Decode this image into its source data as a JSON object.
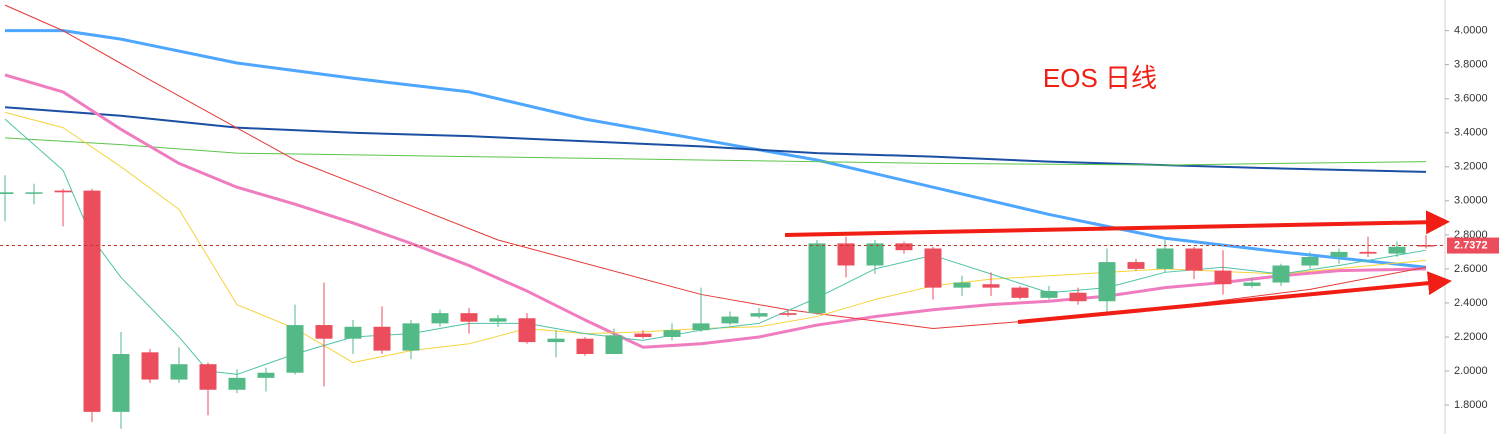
{
  "chart_data": {
    "type": "candlestick",
    "annotation": "EOS 日线",
    "open": [
      3.04,
      3.05,
      3.06,
      3.06,
      1.76,
      2.11,
      1.95,
      2.04,
      1.89,
      1.96,
      1.99,
      2.27,
      2.19,
      2.26,
      2.12,
      2.28,
      2.34,
      2.29,
      2.31,
      2.17,
      2.19,
      2.1,
      2.22,
      2.2,
      2.24,
      2.28,
      2.32,
      2.34,
      2.34,
      2.75,
      2.62,
      2.75,
      2.72,
      2.49,
      2.51,
      2.49,
      2.43,
      2.46,
      2.41,
      2.64,
      2.6,
      2.72,
      2.59,
      2.5,
      2.52,
      2.62,
      2.67,
      2.7,
      2.69,
      2.74
    ],
    "high": [
      3.15,
      3.1,
      3.07,
      3.07,
      2.23,
      2.13,
      2.14,
      2.05,
      2.01,
      2.02,
      2.39,
      2.52,
      2.3,
      2.38,
      2.3,
      2.36,
      2.37,
      2.33,
      2.34,
      2.24,
      2.2,
      2.25,
      2.24,
      2.28,
      2.49,
      2.35,
      2.37,
      2.36,
      2.77,
      2.79,
      2.77,
      2.76,
      2.73,
      2.56,
      2.58,
      2.5,
      2.5,
      2.49,
      2.72,
      2.66,
      2.77,
      2.73,
      2.71,
      2.55,
      2.63,
      2.7,
      2.72,
      2.79,
      2.76,
      2.8
    ],
    "low": [
      2.88,
      2.98,
      2.85,
      1.7,
      1.66,
      1.93,
      1.93,
      1.74,
      1.87,
      1.88,
      1.98,
      1.91,
      2.1,
      2.1,
      2.07,
      2.26,
      2.22,
      2.26,
      2.16,
      2.08,
      2.09,
      2.1,
      2.19,
      2.18,
      2.23,
      2.27,
      2.31,
      2.32,
      2.33,
      2.55,
      2.57,
      2.69,
      2.42,
      2.44,
      2.44,
      2.42,
      2.42,
      2.39,
      2.35,
      2.59,
      2.58,
      2.54,
      2.45,
      2.49,
      2.5,
      2.6,
      2.63,
      2.67,
      2.67,
      2.72
    ],
    "close": [
      3.05,
      3.05,
      3.05,
      1.76,
      2.1,
      1.95,
      2.04,
      1.89,
      1.96,
      1.99,
      2.27,
      2.19,
      2.26,
      2.12,
      2.28,
      2.34,
      2.29,
      2.31,
      2.17,
      2.19,
      2.1,
      2.21,
      2.2,
      2.24,
      2.28,
      2.32,
      2.34,
      2.33,
      2.75,
      2.62,
      2.75,
      2.71,
      2.49,
      2.52,
      2.49,
      2.43,
      2.47,
      2.41,
      2.64,
      2.6,
      2.72,
      2.59,
      2.51,
      2.52,
      2.62,
      2.67,
      2.7,
      2.69,
      2.73,
      2.7372
    ],
    "up_color": "#53b987",
    "down_color": "#eb4d5c",
    "last_price": 2.7372,
    "series": [
      {
        "color": "#4da6ff",
        "width": 3,
        "x": [
          0,
          2,
          4,
          8,
          12,
          16,
          20,
          24,
          28,
          32,
          36,
          40,
          44,
          49
        ],
        "values": [
          4.0,
          4.0,
          3.95,
          3.81,
          3.72,
          3.64,
          3.48,
          3.36,
          3.24,
          3.08,
          2.92,
          2.78,
          2.7,
          2.61
        ]
      },
      {
        "color": "#1a4fa3",
        "width": 2,
        "x": [
          0,
          4,
          8,
          12,
          16,
          20,
          24,
          28,
          32,
          36,
          40,
          44,
          49
        ],
        "values": [
          3.55,
          3.5,
          3.43,
          3.4,
          3.38,
          3.35,
          3.32,
          3.28,
          3.26,
          3.23,
          3.21,
          3.19,
          3.17
        ]
      },
      {
        "color": "#5cc44a",
        "width": 1,
        "x": [
          0,
          4,
          8,
          16,
          24,
          32,
          40,
          44,
          49
        ],
        "values": [
          3.37,
          3.33,
          3.28,
          3.26,
          3.24,
          3.22,
          3.21,
          3.22,
          3.23
        ]
      },
      {
        "color": "#f07cc0",
        "width": 3,
        "x": [
          0,
          2,
          4,
          6,
          8,
          10,
          12,
          14,
          16,
          18,
          20,
          22,
          24,
          26,
          28,
          30,
          32,
          34,
          36,
          38,
          40,
          42,
          44,
          46,
          49
        ],
        "values": [
          3.74,
          3.64,
          3.42,
          3.22,
          3.08,
          2.98,
          2.87,
          2.75,
          2.62,
          2.47,
          2.3,
          2.14,
          2.16,
          2.2,
          2.27,
          2.32,
          2.36,
          2.39,
          2.41,
          2.44,
          2.49,
          2.52,
          2.56,
          2.59,
          2.6
        ]
      },
      {
        "color": "#e53935",
        "width": 1,
        "x": [
          0,
          2,
          5,
          10,
          17,
          24,
          27,
          32,
          38,
          45,
          49
        ],
        "values": [
          4.15,
          4.0,
          3.71,
          3.24,
          2.77,
          2.45,
          2.36,
          2.25,
          2.33,
          2.48,
          2.61
        ]
      },
      {
        "color": "#f5d33a",
        "width": 1,
        "x": [
          0,
          2,
          4,
          6,
          8,
          10,
          12,
          14,
          16,
          18,
          20,
          22,
          24,
          26,
          28,
          30,
          32,
          34,
          36,
          38,
          40,
          44,
          49
        ],
        "values": [
          3.52,
          3.43,
          3.2,
          2.95,
          2.39,
          2.25,
          2.05,
          2.12,
          2.16,
          2.25,
          2.22,
          2.23,
          2.25,
          2.26,
          2.32,
          2.42,
          2.5,
          2.54,
          2.56,
          2.58,
          2.6,
          2.57,
          2.65
        ]
      },
      {
        "color": "#4fc2a8",
        "width": 1,
        "x": [
          0,
          2,
          3,
          4,
          6,
          7,
          8,
          10,
          12,
          14,
          16,
          18,
          20,
          22,
          24,
          26,
          28,
          30,
          32,
          34,
          36,
          38,
          40,
          42,
          44,
          46,
          49
        ],
        "values": [
          3.48,
          3.18,
          2.78,
          2.55,
          2.2,
          2.0,
          1.98,
          2.1,
          2.2,
          2.22,
          2.28,
          2.28,
          2.22,
          2.18,
          2.24,
          2.28,
          2.43,
          2.6,
          2.68,
          2.57,
          2.46,
          2.49,
          2.58,
          2.61,
          2.57,
          2.62,
          2.71
        ]
      }
    ],
    "ylim": [
      1.63,
      4.18
    ],
    "yticks": [
      {
        "value": 4.0,
        "label": "4.0000"
      },
      {
        "value": 3.8,
        "label": "3.8000"
      },
      {
        "value": 3.6,
        "label": "3.6000"
      },
      {
        "value": 3.4,
        "label": "3.4000"
      },
      {
        "value": 3.2,
        "label": "3.2000"
      },
      {
        "value": 3.0,
        "label": "3.0000"
      },
      {
        "value": 2.8,
        "label": "2.8000"
      },
      {
        "value": 2.6,
        "label": "2.6000"
      },
      {
        "value": 2.4,
        "label": "2.4000"
      },
      {
        "value": 2.2,
        "label": "2.2000"
      },
      {
        "value": 2.0,
        "label": "2.0000"
      },
      {
        "value": 1.8,
        "label": "1.8000"
      }
    ]
  }
}
